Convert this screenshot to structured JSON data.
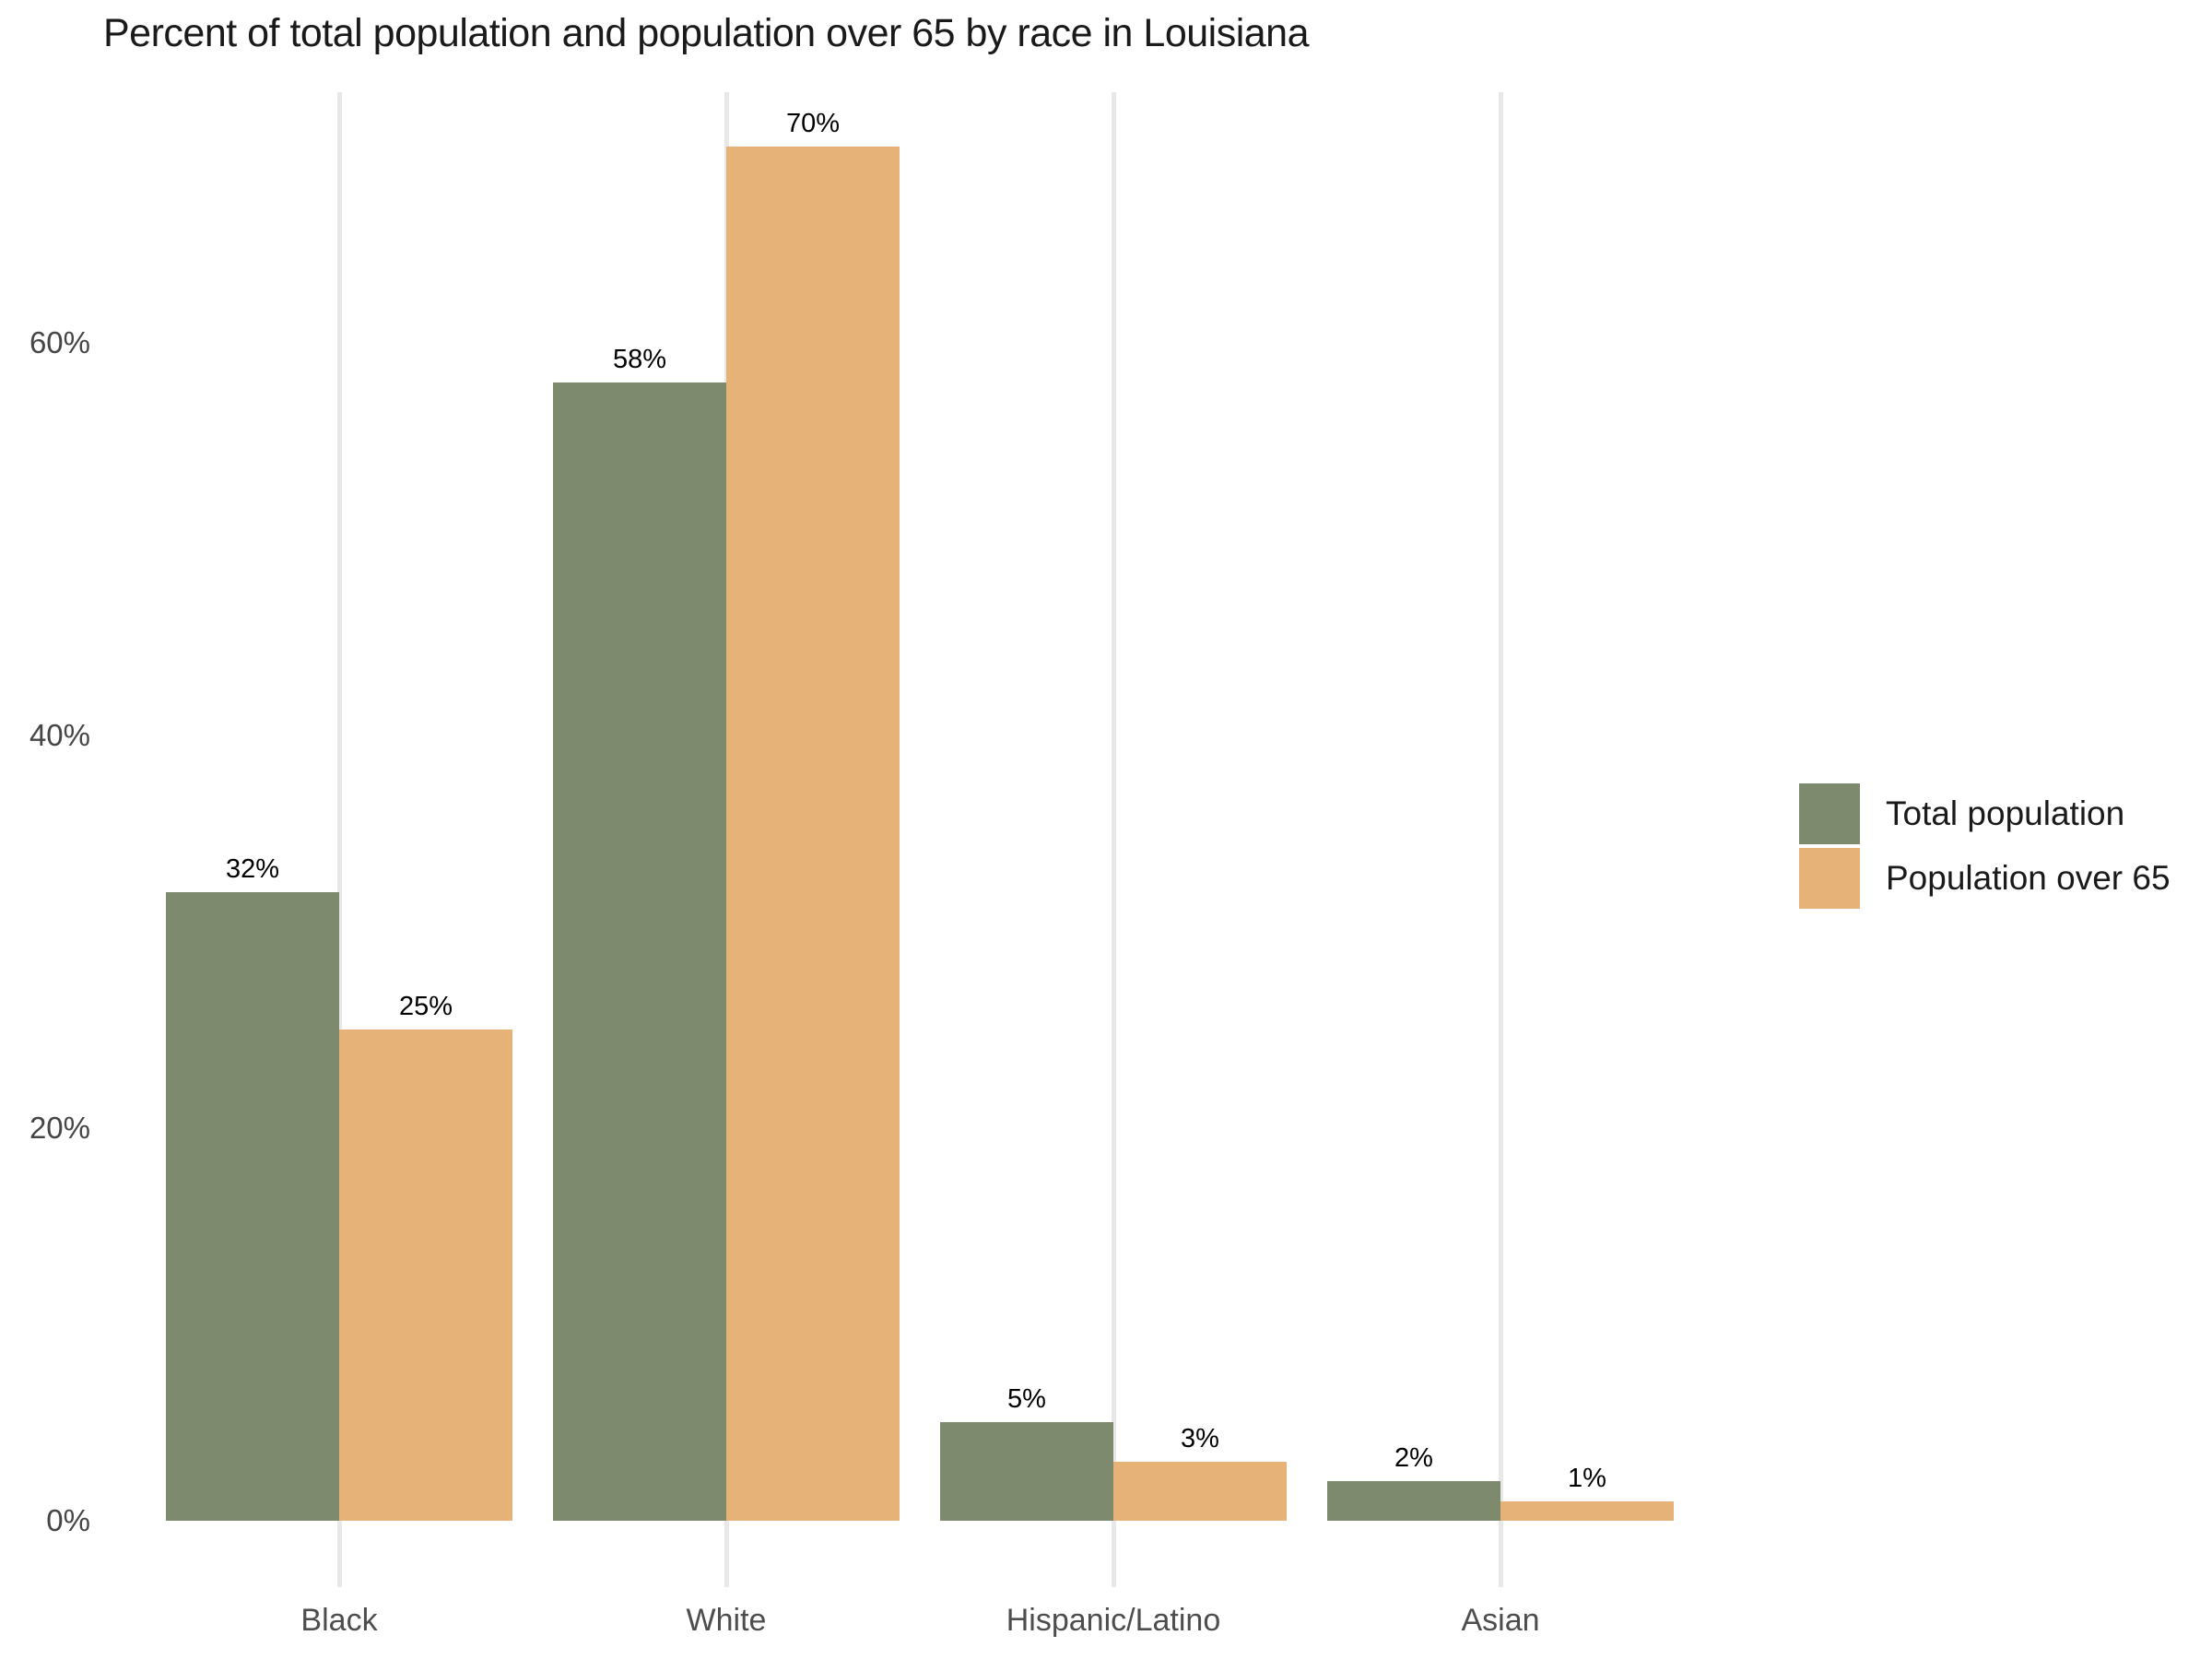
{
  "chart_data": {
    "type": "bar",
    "title": "Percent of total population and population over 65 by race in Louisiana",
    "categories": [
      "Black",
      "White",
      "Hispanic/Latino",
      "Asian"
    ],
    "series": [
      {
        "name": "Total population",
        "color": "#7E8A6E",
        "values": [
          32,
          58,
          5,
          2
        ]
      },
      {
        "name": "Population over 65",
        "color": "#E6B277",
        "values": [
          25,
          70,
          3,
          1
        ]
      }
    ],
    "value_label_suffix": "%",
    "xlabel": "",
    "ylabel": "",
    "y_ticks": [
      "0%",
      "20%",
      "40%",
      "60%"
    ],
    "y_tick_values": [
      0,
      20,
      40,
      60
    ],
    "ylim": [
      0,
      73
    ],
    "grid": "vertical-major-only",
    "legend_position": "right-middle",
    "colors": {
      "background": "#FFFFFF",
      "gridline": "#E8E8E8",
      "axis_tick_text": "#454545",
      "category_text": "#4D4D4D",
      "title_text": "#1A1A1A",
      "value_label_text": "#000000"
    }
  }
}
